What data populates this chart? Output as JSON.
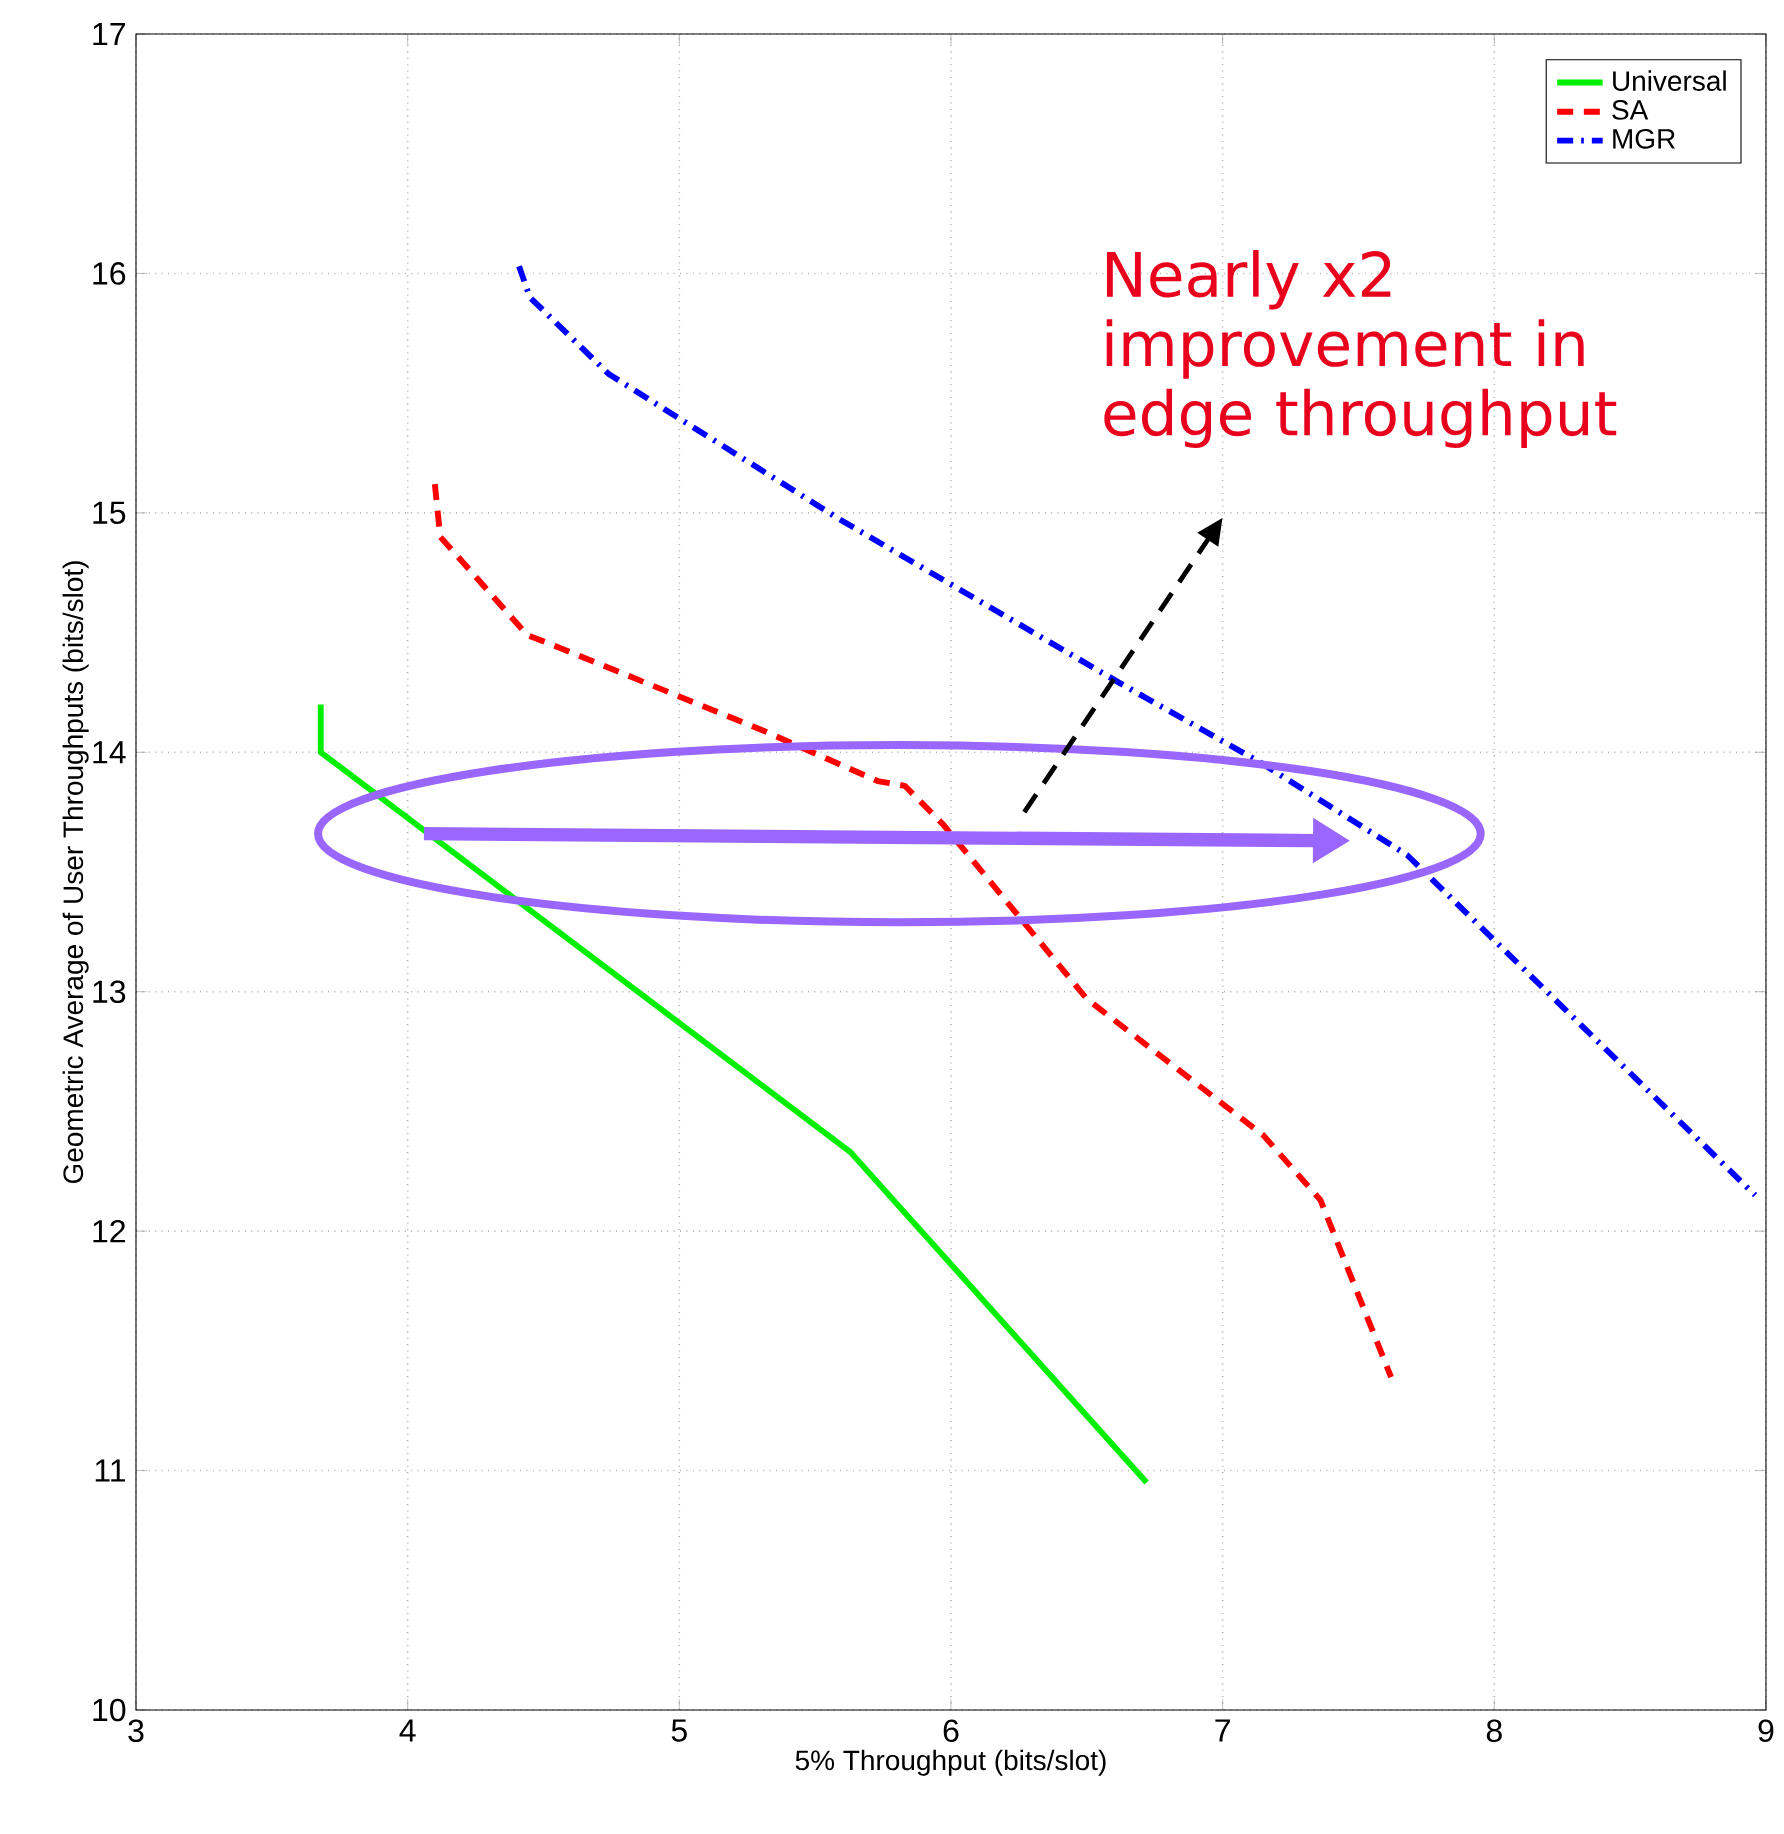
{
  "chart_data": {
    "type": "line",
    "xlabel": "5% Throughput (bits/slot)",
    "ylabel": "Geometric Average of User Throughputs (bits/slot)",
    "xlim": [
      3,
      9
    ],
    "ylim": [
      10,
      17
    ],
    "xticks": [
      3,
      4,
      5,
      6,
      7,
      8,
      9
    ],
    "yticks": [
      10,
      11,
      12,
      13,
      14,
      15,
      16,
      17
    ],
    "grid": true,
    "legend": "top right",
    "marker": "none",
    "series": [
      {
        "name": "Universal",
        "color": "#00ee00",
        "line_style": "solid",
        "x": [
          3.68,
          3.68,
          5.63,
          6.72
        ],
        "values": [
          14.2,
          14.0,
          12.33,
          10.95
        ]
      },
      {
        "name": "SA",
        "color": "#ff0000",
        "line_style": "dashed",
        "x": [
          4.1,
          4.12,
          4.44,
          4.53,
          5.31,
          5.73,
          5.83,
          5.97,
          6.5,
          7.15,
          7.36,
          7.62
        ],
        "values": [
          15.12,
          14.9,
          14.49,
          14.45,
          14.09,
          13.88,
          13.86,
          13.7,
          12.97,
          12.4,
          12.13,
          11.39
        ]
      },
      {
        "name": "MGR",
        "color": "#0000ff",
        "line_style": "dashdot",
        "x": [
          4.41,
          4.45,
          4.74,
          5.58,
          6.62,
          7.15,
          7.68,
          8.96
        ],
        "values": [
          16.03,
          15.9,
          15.58,
          14.98,
          14.29,
          13.95,
          13.57,
          12.15
        ]
      }
    ],
    "annotations": [
      "Nearly x2 improvement in edge throughput"
    ]
  }
}
